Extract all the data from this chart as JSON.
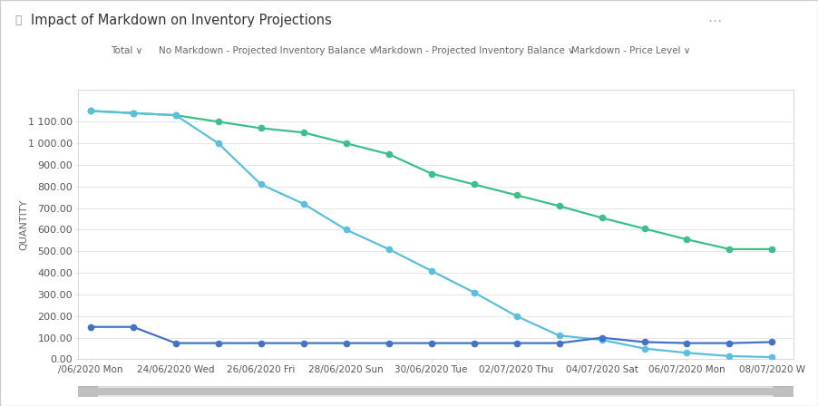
{
  "title": "Impact of Markdown on Inventory Projections",
  "ylabel": "QUANTITY",
  "background_color": "#ffffff",
  "plot_bg_color": "#ffffff",
  "grid_color": "#e8e8e8",
  "border_color": "#d0d0d0",
  "x_labels": [
    "/06/2020 Mon",
    "24/06/2020 Wed",
    "26/06/2020 Fri",
    "28/06/2020 Sun",
    "30/06/2020 Tue",
    "02/07/2020 Thu",
    "04/07/2020 Sat",
    "06/07/2020 Mon",
    "08/07/2020 W"
  ],
  "x_indices": [
    0,
    2,
    4,
    6,
    8,
    10,
    12,
    14,
    16
  ],
  "no_markdown_x": [
    0,
    1,
    2,
    3,
    4,
    5,
    6,
    7,
    8,
    9,
    10,
    11,
    12,
    13,
    14,
    15,
    16
  ],
  "no_markdown_y": [
    1150,
    1140,
    1130,
    1100,
    1070,
    1050,
    1000,
    950,
    860,
    810,
    760,
    710,
    655,
    605,
    555,
    510,
    510
  ],
  "markdown_inv_x": [
    0,
    1,
    2,
    3,
    4,
    5,
    6,
    7,
    8,
    9,
    10,
    11,
    12,
    13,
    14,
    15,
    16
  ],
  "markdown_inv_y": [
    1150,
    1140,
    1130,
    1000,
    810,
    720,
    600,
    510,
    410,
    310,
    200,
    110,
    90,
    50,
    30,
    15,
    10
  ],
  "markdown_price_x": [
    0,
    1,
    2,
    3,
    4,
    5,
    6,
    7,
    8,
    9,
    10,
    11,
    12,
    13,
    14,
    15,
    16
  ],
  "markdown_price_y": [
    150,
    150,
    75,
    75,
    75,
    75,
    75,
    75,
    75,
    75,
    75,
    75,
    100,
    80,
    75,
    75,
    80
  ],
  "no_markdown_color": "#3dbf8a",
  "markdown_inv_color": "#5bbfdb",
  "markdown_price_color": "#4472c4",
  "ylim": [
    0,
    1250
  ],
  "yticks": [
    0,
    100,
    200,
    300,
    400,
    500,
    600,
    700,
    800,
    900,
    1000,
    1100
  ],
  "ytick_labels": [
    "0.00",
    "100.00",
    "200.00",
    "300.00",
    "400.00",
    "500.00",
    "600.00",
    "700.00",
    "800.00",
    "900.00",
    "1 000.00",
    "1 100.00"
  ],
  "title_fontsize": 10.5,
  "axis_fontsize": 8,
  "legend_fontsize": 7.5,
  "marker_size": 4.5,
  "line_width": 1.6
}
